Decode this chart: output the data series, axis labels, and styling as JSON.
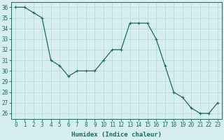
{
  "x": [
    0,
    1,
    2,
    3,
    4,
    5,
    6,
    7,
    8,
    9,
    10,
    11,
    12,
    13,
    14,
    15,
    16,
    17,
    18,
    19,
    20,
    21,
    22,
    23
  ],
  "y": [
    36,
    36,
    35.5,
    35,
    31,
    30.5,
    29.5,
    30,
    30,
    30,
    31,
    32,
    32,
    34.5,
    34.5,
    34.5,
    33,
    30.5,
    28,
    27.5,
    26.5,
    26,
    26,
    27
  ],
  "xlabel": "Humidex (Indice chaleur)",
  "xlim": [
    -0.5,
    23.5
  ],
  "ylim": [
    25.5,
    36.5
  ],
  "yticks": [
    26,
    27,
    28,
    29,
    30,
    31,
    32,
    33,
    34,
    35,
    36
  ],
  "xticks": [
    0,
    1,
    2,
    3,
    4,
    5,
    6,
    7,
    8,
    9,
    10,
    11,
    12,
    13,
    14,
    15,
    16,
    17,
    18,
    19,
    20,
    21,
    22,
    23
  ],
  "line_color": "#1a6b5a",
  "marker": "+",
  "bg_color": "#d6eeee",
  "grid_color": "#b8d8d8",
  "axis_color": "#1a6b5a",
  "label_fontsize": 6.5,
  "tick_fontsize": 5.5
}
